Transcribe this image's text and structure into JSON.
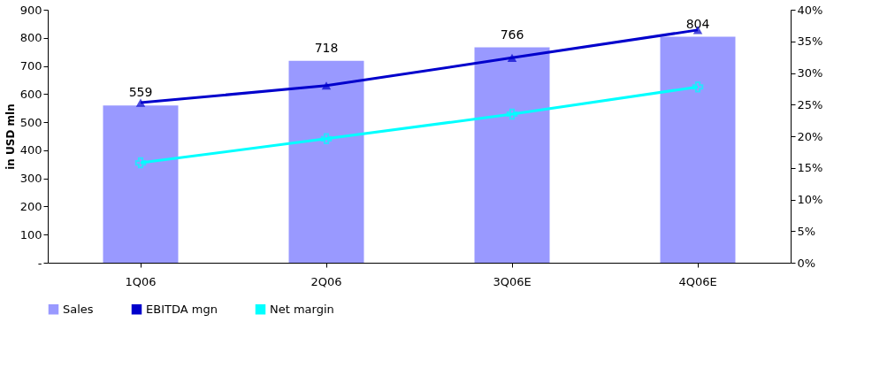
{
  "chart_data": {
    "type": "bar",
    "categories": [
      "1Q06",
      "2Q06",
      "3Q06E",
      "4Q06E"
    ],
    "ylabel": "in USD mln",
    "ylim": [
      0,
      900
    ],
    "yticks": [
      {
        "value": 0,
        "label": "-"
      },
      100,
      200,
      300,
      400,
      500,
      600,
      700,
      800,
      900
    ],
    "y2lim": [
      0,
      40
    ],
    "y2ticks": [
      {
        "value": 0,
        "label": "0%"
      },
      {
        "value": 5,
        "label": "5%"
      },
      {
        "value": 10,
        "label": "10%"
      },
      {
        "value": 15,
        "label": "15%"
      },
      {
        "value": 20,
        "label": "20%"
      },
      {
        "value": 25,
        "label": "25%"
      },
      {
        "value": 30,
        "label": "30%"
      },
      {
        "value": 35,
        "label": "35%"
      },
      {
        "value": 40,
        "label": "40%"
      }
    ],
    "series": [
      {
        "name": "Sales",
        "color": "#9999ff",
        "values": [
          559,
          718,
          766,
          804
        ],
        "value_labels": [
          "559",
          "718",
          "766",
          "804"
        ]
      },
      {
        "name": "EBITDA mgn",
        "type": "line",
        "axis": "y2",
        "marker": "triangle",
        "color": "#0000cc",
        "values": [
          25.3,
          28.0,
          32.4,
          36.8
        ]
      },
      {
        "name": "Net margin",
        "type": "line",
        "axis": "y2",
        "marker": "cross",
        "color": "#00ffff",
        "values": [
          15.8,
          19.6,
          23.5,
          27.8
        ]
      }
    ],
    "grid": false,
    "legend": "bottom"
  }
}
